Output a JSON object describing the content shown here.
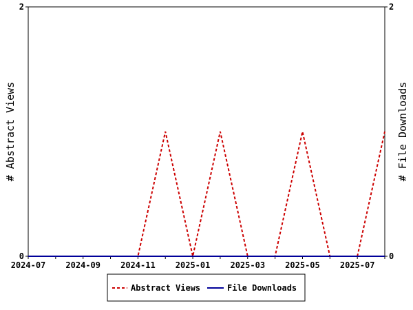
{
  "chart_data": {
    "type": "line",
    "x": [
      "2024-07",
      "2024-08",
      "2024-09",
      "2024-10",
      "2024-11",
      "2024-12",
      "2025-01",
      "2025-02",
      "2025-03",
      "2025-04",
      "2025-05",
      "2025-06",
      "2025-07",
      "2025-08"
    ],
    "xticks": [
      "2024-07",
      "2024-09",
      "2024-11",
      "2025-01",
      "2025-03",
      "2025-05",
      "2025-07"
    ],
    "ylabel_left": "# Abstract Views",
    "ylabel_right": "# File Downloads",
    "ylim": [
      0,
      2
    ],
    "yticks_left": [
      "0",
      "2"
    ],
    "yticks_right": [
      "0",
      "2"
    ],
    "legend_position": "bottom",
    "series": [
      {
        "name": "Abstract Views",
        "color": "#cc0000",
        "dash": true,
        "axis": "left",
        "values": [
          0,
          0,
          0,
          0,
          0,
          1,
          0,
          1,
          0,
          0,
          1,
          0,
          0,
          1
        ]
      },
      {
        "name": "File Downloads",
        "color": "#000099",
        "dash": false,
        "axis": "right",
        "values": [
          0,
          0,
          0,
          0,
          0,
          0,
          0,
          0,
          0,
          0,
          0,
          0,
          0,
          0
        ]
      }
    ]
  }
}
